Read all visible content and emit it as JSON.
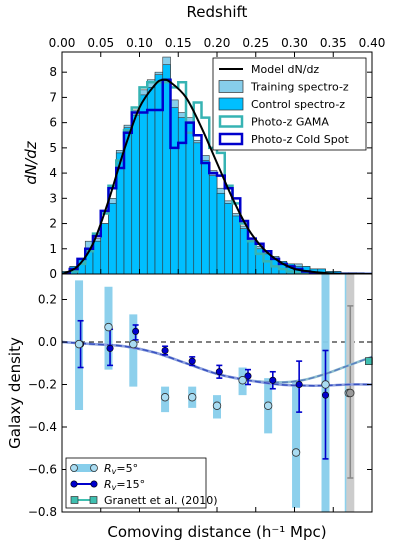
{
  "chart_data": [
    {
      "type": "bar",
      "panel": "top",
      "top_axis_label": "Redshift",
      "ylabel": "dN/dz",
      "xlim": [
        0.0,
        0.4
      ],
      "ylim": [
        0,
        8.8
      ],
      "x_ticks": [
        "0.00",
        "0.05",
        "0.10",
        "0.15",
        "0.20",
        "0.25",
        "0.30",
        "0.35",
        "0.40"
      ],
      "y_ticks": [
        "0",
        "1",
        "2",
        "3",
        "4",
        "5",
        "6",
        "7",
        "8"
      ],
      "bin_width": 0.01,
      "bin_starts": [
        0.0,
        0.01,
        0.02,
        0.03,
        0.04,
        0.05,
        0.06,
        0.07,
        0.08,
        0.09,
        0.1,
        0.11,
        0.12,
        0.13,
        0.14,
        0.15,
        0.16,
        0.17,
        0.18,
        0.19,
        0.2,
        0.21,
        0.22,
        0.23,
        0.24,
        0.25,
        0.26,
        0.27,
        0.28,
        0.29,
        0.3,
        0.31,
        0.32,
        0.33,
        0.34,
        0.35,
        0.36,
        0.37,
        0.38,
        0.39
      ],
      "series": [
        {
          "name": "Training spectro-z",
          "style": "bars",
          "color": "#87ceeb",
          "values": [
            0.1,
            0.3,
            0.6,
            1.3,
            1.4,
            2.0,
            3.0,
            4.9,
            5.9,
            6.5,
            7.3,
            7.7,
            8.0,
            8.6,
            6.9,
            6.4,
            6.2,
            5.3,
            4.7,
            4.1,
            3.4,
            2.9,
            2.4,
            1.9,
            1.3,
            1.1,
            0.9,
            0.7,
            0.5,
            0.4,
            0.4,
            0.3,
            0.2,
            0.2,
            0.1,
            0.1,
            0.05,
            0.05,
            0.05,
            0.0
          ]
        },
        {
          "name": "Control spectro-z",
          "style": "bars",
          "color": "#00bfff",
          "values": [
            0.1,
            0.3,
            0.6,
            1.0,
            1.3,
            2.0,
            2.8,
            4.8,
            5.8,
            6.3,
            7.1,
            7.4,
            7.9,
            8.3,
            6.6,
            6.2,
            6.0,
            5.2,
            4.5,
            3.9,
            3.2,
            2.8,
            2.3,
            1.8,
            1.3,
            1.0,
            0.8,
            0.6,
            0.5,
            0.4,
            0.3,
            0.3,
            0.2,
            0.2,
            0.1,
            0.1,
            0.05,
            0.05,
            0.0,
            0.0
          ]
        },
        {
          "name": "Photo-z GAMA",
          "style": "step",
          "color": "#36b3b3",
          "values": [
            0.0,
            0.1,
            0.4,
            0.9,
            1.6,
            2.4,
            3.5,
            4.5,
            5.7,
            6.6,
            7.4,
            7.6,
            7.6,
            7.6,
            7.4,
            7.6,
            5.6,
            6.8,
            6.2,
            5.0,
            4.8,
            3.5,
            2.8,
            2.0,
            1.3,
            0.8,
            0.5,
            0.3,
            0.2,
            0.1,
            0.05,
            0.0,
            0.0,
            0.0,
            0.0,
            0.0,
            0.0,
            0.0,
            0.0,
            0.0
          ]
        },
        {
          "name": "Photo-z Cold Spot",
          "style": "step",
          "color": "#0000cc",
          "values": [
            0.0,
            0.2,
            0.6,
            1.0,
            1.5,
            2.5,
            3.4,
            4.2,
            5.6,
            6.4,
            6.4,
            6.5,
            6.5,
            7.7,
            5.0,
            5.2,
            6.0,
            5.5,
            4.4,
            4.0,
            3.9,
            3.4,
            3.0,
            2.1,
            1.4,
            1.2,
            0.9,
            0.6,
            0.4,
            0.3,
            0.2,
            0.1,
            0.05,
            0.0,
            0.0,
            0.0,
            0.0,
            0.0,
            0.0,
            0.0
          ]
        },
        {
          "name": "Model dN/dz",
          "style": "curve",
          "color": "#000000",
          "x": [
            0.0,
            0.02,
            0.04,
            0.06,
            0.08,
            0.1,
            0.12,
            0.13,
            0.14,
            0.16,
            0.18,
            0.2,
            0.22,
            0.24,
            0.26,
            0.28,
            0.3,
            0.32,
            0.34,
            0.36,
            0.38,
            0.4
          ],
          "values": [
            0.0,
            0.3,
            1.2,
            2.9,
            4.9,
            6.6,
            7.5,
            7.7,
            7.6,
            7.0,
            5.8,
            4.4,
            3.0,
            1.8,
            1.0,
            0.5,
            0.2,
            0.1,
            0.04,
            0.0,
            0.0,
            0.0
          ]
        }
      ],
      "legend": {
        "placement": "top-right",
        "entries": [
          "Model dN/dz",
          "Training spectro-z",
          "Control spectro-z",
          "Photo-z GAMA",
          "Photo-z Cold Spot"
        ]
      }
    },
    {
      "type": "scatter",
      "panel": "bottom",
      "xlabel": "Comoving distance (h⁻¹ Mpc)",
      "ylabel": "Galaxy density",
      "xlim": [
        0.0,
        0.4
      ],
      "ylim": [
        -0.8,
        0.32
      ],
      "y_ticks": [
        "−0.8",
        "−0.6",
        "−0.4",
        "−0.2",
        "0.0",
        "0.2"
      ],
      "y_tick_values": [
        -0.8,
        -0.6,
        -0.4,
        -0.2,
        0.0,
        0.2
      ],
      "zero_line": true,
      "series": [
        {
          "name": "R_v=5°",
          "label_main": "R",
          "label_sub": "v",
          "label_rest": "=5°",
          "style": "open-circles-with-bands",
          "color": "#87ceeb",
          "x": [
            0.022,
            0.06,
            0.092,
            0.133,
            0.168,
            0.2,
            0.233,
            0.266,
            0.302,
            0.34,
            0.37
          ],
          "y": [
            -0.01,
            0.07,
            -0.01,
            -0.26,
            -0.26,
            -0.3,
            -0.18,
            -0.3,
            -0.52,
            -0.2,
            -0.24
          ],
          "band_low": [
            -0.32,
            -0.13,
            -0.21,
            -0.33,
            -0.31,
            -0.36,
            -0.25,
            -0.43,
            -0.78,
            -0.8,
            -0.8
          ],
          "band_high": [
            0.29,
            0.26,
            0.13,
            -0.21,
            -0.21,
            -0.25,
            -0.12,
            -0.17,
            -0.19,
            0.34,
            0.34
          ]
        },
        {
          "name": "R_v=15°",
          "label_main": "R",
          "label_sub": "v",
          "label_rest": "=15°",
          "style": "filled-circles-with-errorbars",
          "color": "#0000cc",
          "x": [
            0.024,
            0.062,
            0.095,
            0.133,
            0.168,
            0.203,
            0.24,
            0.272,
            0.306,
            0.34
          ],
          "y": [
            -0.01,
            -0.03,
            0.05,
            -0.04,
            -0.09,
            -0.14,
            -0.16,
            -0.18,
            -0.2,
            -0.25
          ],
          "err_low": [
            -0.12,
            -0.11,
            0.01,
            -0.06,
            -0.11,
            -0.17,
            -0.2,
            -0.22,
            -0.33,
            -0.55
          ],
          "err_high": [
            0.1,
            0.06,
            0.08,
            -0.02,
            -0.07,
            -0.11,
            -0.13,
            -0.14,
            -0.09,
            -0.04
          ]
        },
        {
          "name": "Granett et al. (2010)",
          "style": "square-marker",
          "color": "#3fbfb0",
          "x": [
            0.396
          ],
          "y": [
            -0.09
          ]
        },
        {
          "name": "highest-distance point",
          "style": "open-circle-grey-band",
          "color": "#808080",
          "x": [
            0.372
          ],
          "y": [
            -0.24
          ],
          "band_low": [
            -0.8
          ],
          "band_high": [
            0.32
          ],
          "err_low": [
            -0.64
          ],
          "err_high": [
            0.17
          ]
        },
        {
          "name": "model curve",
          "style": "dashed-curve",
          "color": "#5a7fbf",
          "x": [
            0.0,
            0.04,
            0.08,
            0.12,
            0.16,
            0.2,
            0.24,
            0.28,
            0.31,
            0.34,
            0.37,
            0.4
          ],
          "values": [
            0.0,
            -0.01,
            -0.02,
            -0.05,
            -0.1,
            -0.15,
            -0.18,
            -0.19,
            -0.18,
            -0.15,
            -0.11,
            -0.07
          ]
        },
        {
          "name": "model curve 15",
          "style": "dashed-curve",
          "color": "#3a52c0",
          "x": [
            0.0,
            0.04,
            0.08,
            0.12,
            0.16,
            0.2,
            0.24,
            0.28,
            0.31,
            0.34,
            0.37,
            0.4
          ],
          "values": [
            0.0,
            -0.01,
            -0.02,
            -0.05,
            -0.1,
            -0.15,
            -0.18,
            -0.2,
            -0.205,
            -0.205,
            -0.2,
            -0.2
          ]
        }
      ],
      "legend": {
        "placement": "bottom-left",
        "entries": [
          "R_v=5°",
          "R_v=15°",
          "Granett et al. (2010)"
        ]
      }
    }
  ]
}
